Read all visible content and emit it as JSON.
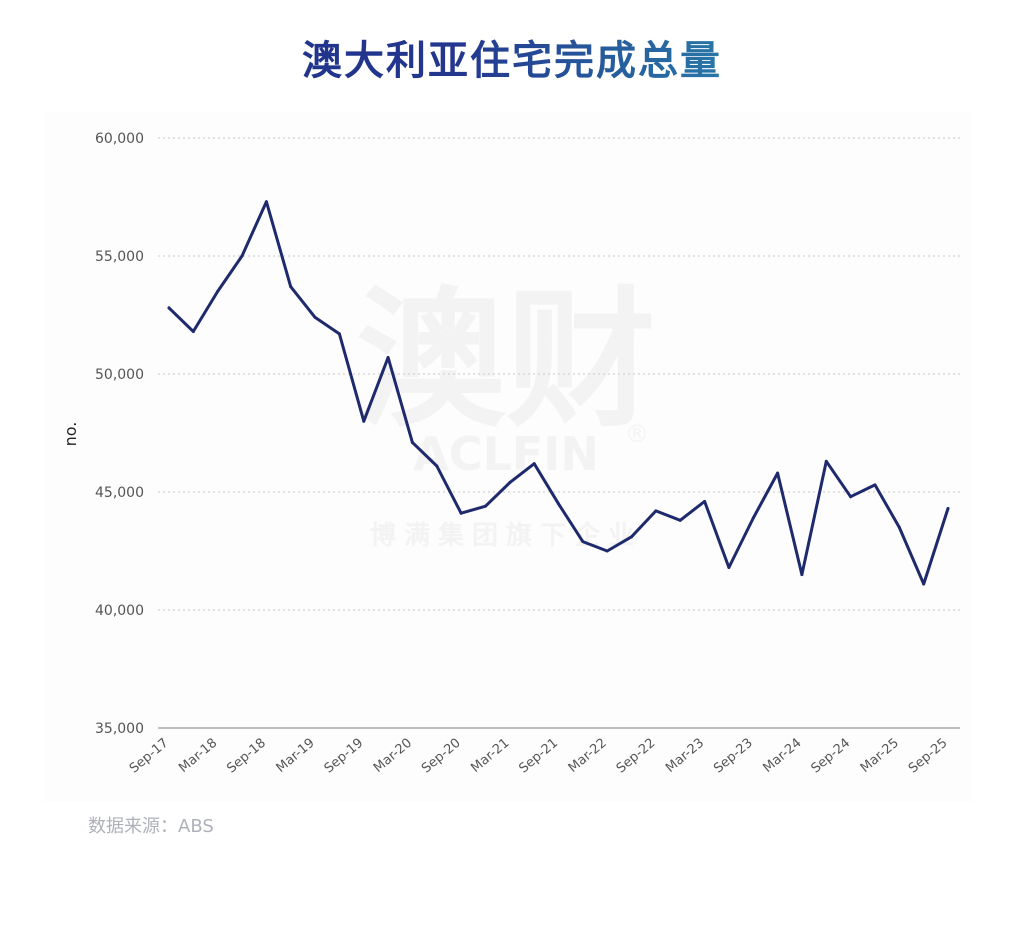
{
  "header": {
    "title": "澳大利亚住宅完成总量"
  },
  "watermark": {
    "logo_text": "澳财",
    "brand": "ACLFIN",
    "registered": "®",
    "subtitle": "博满集团旗下企业"
  },
  "source": "数据来源：ABS",
  "colors": {
    "line": "#1f2a6d",
    "title_start": "#1f2f86",
    "title_end": "#31b2c6",
    "grid": "#c8c8c8",
    "axis_text": "#555555"
  },
  "chart_data": {
    "type": "line",
    "ylabel": "no.",
    "xlabel": "",
    "ylim": [
      35000,
      60000
    ],
    "yticks": [
      "35,000",
      "40,000",
      "45,000",
      "50,000",
      "55,000",
      "60,000"
    ],
    "ytick_values": [
      35000,
      40000,
      45000,
      50000,
      55000,
      60000
    ],
    "grid": "horizontal dotted",
    "tick_labels": [
      "Sep-17",
      "Mar-18",
      "Sep-18",
      "Mar-19",
      "Sep-19",
      "Mar-20",
      "Sep-20",
      "Mar-21",
      "Sep-21",
      "Mar-22",
      "Sep-22",
      "Mar-23",
      "Sep-23",
      "Mar-24",
      "Sep-24",
      "Mar-25",
      "Sep-25"
    ],
    "x": [
      "Sep-17",
      "Dec-17",
      "Mar-18",
      "Jun-18",
      "Sep-18",
      "Dec-18",
      "Mar-19",
      "Jun-19",
      "Sep-19",
      "Dec-19",
      "Mar-20",
      "Jun-20",
      "Sep-20",
      "Dec-20",
      "Mar-21",
      "Jun-21",
      "Sep-21",
      "Dec-21",
      "Mar-22",
      "Jun-22",
      "Sep-22",
      "Dec-22",
      "Mar-23",
      "Jun-23",
      "Sep-23",
      "Dec-23",
      "Mar-24",
      "Jun-24",
      "Sep-24",
      "Dec-24",
      "Mar-25",
      "Jun-25",
      "Sep-25"
    ],
    "series": [
      {
        "values": [
          52800,
          51800,
          53500,
          55000,
          57300,
          53700,
          52400,
          51700,
          48000,
          50700,
          47100,
          46100,
          44100,
          44400,
          45400,
          46200,
          44500,
          42900,
          42500,
          43100,
          44200,
          43800,
          44600,
          41800,
          43900,
          45800,
          41500,
          46300,
          44800,
          45300,
          43500,
          41100,
          44300
        ]
      }
    ]
  }
}
